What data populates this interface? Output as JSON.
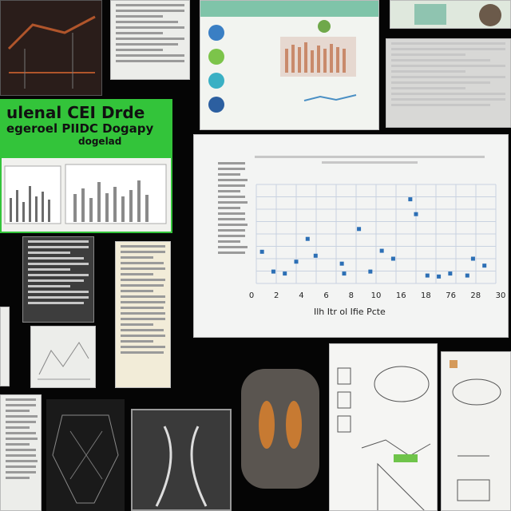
{
  "green_poster": {
    "title_line1": "ulenal CEI Drde",
    "title_line2": "egeroel PIIDC Dogapy",
    "title_line3": "dogelad"
  },
  "scatter_panel": {
    "caption": "Ilh Itr ol Ifie Pcte"
  },
  "chart_data": {
    "type": "scatter",
    "title": "",
    "xlabel": "Ilh Itr ol Ifie Pcte",
    "ylabel": "",
    "x_tick_labels": [
      "0",
      "2",
      "4",
      "6",
      "8",
      "10",
      "16",
      "18",
      "76",
      "28",
      "30"
    ],
    "grid": true,
    "points": [
      {
        "x": 0.5,
        "y": 0.32
      },
      {
        "x": 1.5,
        "y": 0.12
      },
      {
        "x": 2.5,
        "y": 0.1
      },
      {
        "x": 3.5,
        "y": 0.22
      },
      {
        "x": 4.5,
        "y": 0.45
      },
      {
        "x": 5.2,
        "y": 0.28
      },
      {
        "x": 7.5,
        "y": 0.2
      },
      {
        "x": 7.7,
        "y": 0.1
      },
      {
        "x": 9.0,
        "y": 0.55
      },
      {
        "x": 10.0,
        "y": 0.12
      },
      {
        "x": 11.0,
        "y": 0.33
      },
      {
        "x": 12.0,
        "y": 0.25
      },
      {
        "x": 13.5,
        "y": 0.85
      },
      {
        "x": 14.0,
        "y": 0.7
      },
      {
        "x": 15.0,
        "y": 0.08
      },
      {
        "x": 16.0,
        "y": 0.07
      },
      {
        "x": 17.0,
        "y": 0.1
      },
      {
        "x": 18.5,
        "y": 0.08
      },
      {
        "x": 19.0,
        "y": 0.25
      },
      {
        "x": 20.0,
        "y": 0.18
      }
    ],
    "point_color": "#2c6fb5"
  },
  "colors": {
    "background": "#050505",
    "accent_green": "#33c43a",
    "paper": "#ecedea"
  }
}
